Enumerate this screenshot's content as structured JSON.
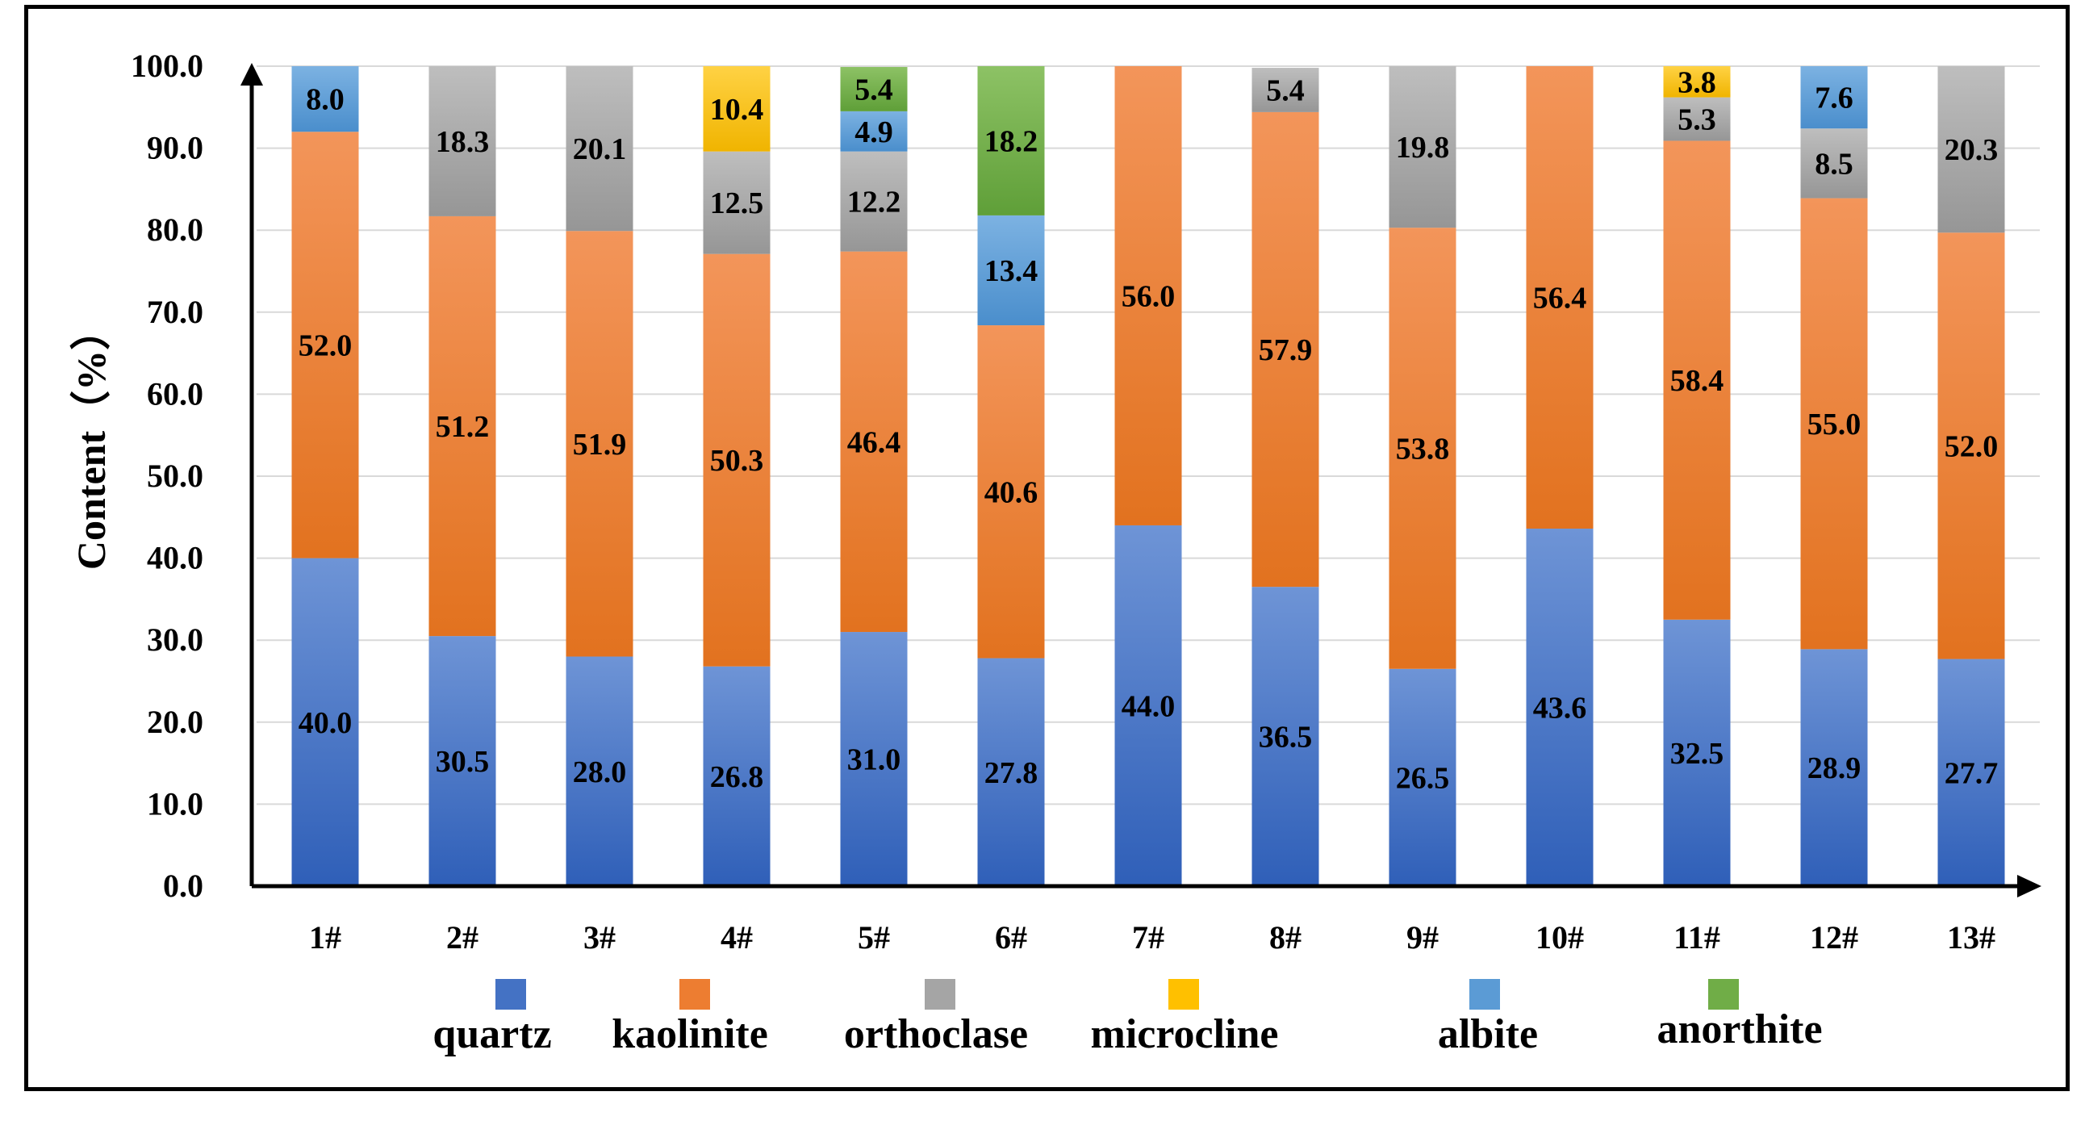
{
  "chart_data": {
    "type": "bar",
    "stacked": true,
    "title": "",
    "xlabel": "",
    "ylabel": "Content（%）",
    "ylim": [
      0,
      100
    ],
    "yticks": [
      "0.0",
      "10.0",
      "20.0",
      "30.0",
      "40.0",
      "50.0",
      "60.0",
      "70.0",
      "80.0",
      "90.0",
      "100.0"
    ],
    "categories": [
      "1#",
      "2#",
      "3#",
      "4#",
      "5#",
      "6#",
      "7#",
      "8#",
      "9#",
      "10#",
      "11#",
      "12#",
      "13#"
    ],
    "series": [
      {
        "name": "quartz",
        "color": "#4472C4",
        "values": [
          40.0,
          30.5,
          28.0,
          26.8,
          31.0,
          27.8,
          44.0,
          36.5,
          26.5,
          43.6,
          32.5,
          28.9,
          27.7
        ],
        "labels": [
          "40.0",
          "30.5",
          "28.0",
          "26.8",
          "31.0",
          "27.8",
          "44.0",
          "36.5",
          "26.5",
          "43.6",
          "32.5",
          "28.9",
          "27.7"
        ]
      },
      {
        "name": "kaolinite",
        "color": "#ED7D31",
        "values": [
          52.0,
          51.2,
          51.9,
          50.3,
          46.4,
          40.6,
          56.0,
          57.9,
          53.8,
          56.4,
          58.4,
          55.0,
          52.0
        ],
        "labels": [
          "52.0",
          "51.2",
          "51.9",
          "50.3",
          "46.4",
          "40.6",
          "56.0",
          "57.9",
          "53.8",
          "56.4",
          "58.4",
          "55.0",
          "52.0"
        ]
      },
      {
        "name": "orthoclase",
        "color": "#A5A5A5",
        "values": [
          null,
          18.3,
          20.1,
          12.5,
          12.2,
          null,
          null,
          5.4,
          19.8,
          null,
          5.3,
          8.5,
          20.3
        ],
        "labels": [
          null,
          "18.3",
          "20.1",
          "12.5",
          "12.2",
          null,
          null,
          "5.4",
          "19.8",
          null,
          "5.3",
          "8.5",
          "20.3"
        ]
      },
      {
        "name": "microcline",
        "color": "#FFC000",
        "values": [
          null,
          null,
          null,
          10.4,
          null,
          null,
          null,
          null,
          null,
          null,
          3.8,
          null,
          null
        ],
        "labels": [
          null,
          null,
          null,
          "10.4",
          null,
          null,
          null,
          null,
          null,
          null,
          "3.8",
          null,
          null
        ]
      },
      {
        "name": "albite",
        "color": "#5B9BD5",
        "values": [
          8.0,
          null,
          null,
          null,
          4.9,
          13.4,
          null,
          null,
          null,
          null,
          null,
          7.6,
          null
        ],
        "labels": [
          "8.0",
          null,
          null,
          null,
          "4.9",
          "13.4",
          null,
          null,
          null,
          null,
          null,
          "7.6",
          null
        ]
      },
      {
        "name": "anorthite",
        "color": "#70AD47",
        "values": [
          null,
          null,
          null,
          null,
          5.4,
          18.2,
          null,
          null,
          null,
          null,
          null,
          null,
          null
        ],
        "labels": [
          null,
          null,
          null,
          null,
          "5.4",
          "18.2",
          null,
          null,
          null,
          null,
          null,
          null,
          null
        ]
      }
    ],
    "legend": {
      "position": "bottom",
      "items": [
        "quartz",
        "kaolinite",
        "orthoclase",
        "microcline",
        "albite",
        "anorthite"
      ]
    },
    "grid": true
  }
}
